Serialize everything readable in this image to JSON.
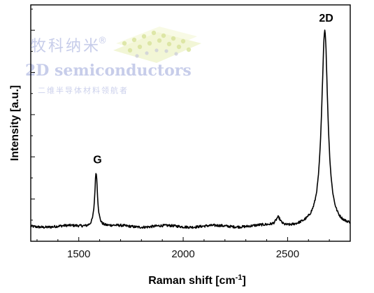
{
  "watermark": {
    "line1": "牧科纳米",
    "registered": "®",
    "line2": "2D semiconductors",
    "line3": "二维半导体材料领航者",
    "logo_icon": "layered-crystal-logo-icon"
  },
  "chart_data": {
    "type": "line",
    "title": "",
    "xlabel": "Raman shift [cm",
    "xlabel_superscript": "-1",
    "xlabel_suffix": "]",
    "ylabel": "Intensity [a.u.]",
    "xlim": [
      1270,
      2800
    ],
    "ylim": [
      0,
      1.12
    ],
    "x_ticks": [
      1500,
      2000,
      2500
    ],
    "x_tick_labels": [
      "1500",
      "2000",
      "2500"
    ],
    "y_tick_labels_shown": false,
    "grid": false,
    "legend": "none",
    "line_color": "#000000",
    "baseline": 0.07,
    "series": [
      {
        "peaks": [
          {
            "label": "G",
            "x": 1583,
            "y": 0.33
          },
          {
            "label": "",
            "x": 2455,
            "y": 0.11
          },
          {
            "label": "2D",
            "x": 2678,
            "y": 1.0
          }
        ]
      }
    ],
    "annotations": [
      {
        "text": "G",
        "x": 1583,
        "y": 0.33
      },
      {
        "text": "2D",
        "x": 2678,
        "y": 1.0
      }
    ]
  }
}
